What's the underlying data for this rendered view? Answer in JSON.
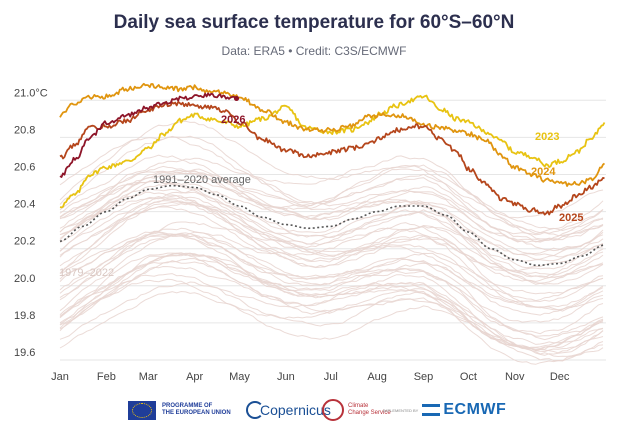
{
  "title": "Daily sea surface temperature for 60°S–60°N",
  "subtitle": "Data: ERA5 • Credit: C3S/ECMWF",
  "footer": {
    "eu_label_line1": "PROGRAMME OF",
    "eu_label_line2": "THE EUROPEAN UNION",
    "copernicus": "Copernicus",
    "c3s_line1": "Climate",
    "c3s_line2": "Change Service",
    "implemented_by": "IMPLEMENTED BY",
    "ecmwf": "ECMWF"
  },
  "colors": {
    "y2023": "#e8c312",
    "y2024": "#e0950f",
    "y2025": "#b5461c",
    "y2026": "#8e1529",
    "history": "#e8d5d0",
    "average": "#555555",
    "axis_text": "#444444"
  },
  "chart_data": {
    "type": "line",
    "title": "Daily sea surface temperature for 60°S–60°N",
    "ylim": [
      19.6,
      21.05
    ],
    "yticks": [
      19.6,
      19.8,
      20.0,
      20.2,
      20.4,
      20.6,
      20.8,
      21.0
    ],
    "ytick_labels": [
      "19.6",
      "19.8",
      "20.0",
      "20.2",
      "20.4",
      "20.6",
      "20.8",
      "21.0°C"
    ],
    "xlim": [
      0,
      365
    ],
    "months": [
      "Jan",
      "Feb",
      "Mar",
      "Apr",
      "May",
      "Jun",
      "Jul",
      "Aug",
      "Sep",
      "Oct",
      "Nov",
      "Dec"
    ],
    "month_starts": [
      0,
      31,
      59,
      90,
      120,
      151,
      181,
      212,
      243,
      273,
      304,
      334
    ],
    "annotations": {
      "average_label": "1991–2020 average",
      "history_label": "1979–2022"
    },
    "series": [
      {
        "name": "2023",
        "x": [
          0,
          10,
          20,
          31,
          45,
          59,
          70,
          80,
          90,
          100,
          110,
          120,
          135,
          151,
          165,
          181,
          195,
          205,
          215,
          225,
          235,
          243,
          255,
          265,
          273,
          285,
          295,
          304,
          315,
          325,
          334,
          345,
          355,
          364
        ],
        "y": [
          20.43,
          20.49,
          20.6,
          20.64,
          20.67,
          20.74,
          20.82,
          20.89,
          20.92,
          20.9,
          20.88,
          20.86,
          20.9,
          20.96,
          20.85,
          20.83,
          20.84,
          20.88,
          20.93,
          20.97,
          21.0,
          21.02,
          20.95,
          20.9,
          20.88,
          20.83,
          20.78,
          20.72,
          20.7,
          20.65,
          20.67,
          20.72,
          20.79,
          20.88
        ]
      },
      {
        "name": "2024",
        "x": [
          0,
          10,
          20,
          31,
          45,
          59,
          70,
          80,
          90,
          100,
          110,
          120,
          135,
          151,
          165,
          181,
          195,
          205,
          215,
          225,
          235,
          243,
          255,
          265,
          273,
          285,
          295,
          304,
          315,
          325,
          334,
          345,
          355,
          364
        ],
        "y": [
          20.92,
          20.98,
          21.02,
          21.02,
          21.06,
          21.08,
          21.07,
          21.06,
          21.07,
          21.05,
          21.04,
          21.02,
          20.95,
          20.88,
          20.84,
          20.84,
          20.86,
          20.91,
          20.92,
          20.92,
          20.9,
          20.87,
          20.85,
          20.84,
          20.82,
          20.78,
          20.7,
          20.64,
          20.6,
          20.57,
          20.55,
          20.55,
          20.57,
          20.66
        ]
      },
      {
        "name": "2025",
        "x": [
          0,
          10,
          20,
          31,
          45,
          59,
          70,
          80,
          90,
          100,
          110,
          120,
          135,
          151,
          165,
          181,
          195,
          205,
          215,
          225,
          235,
          243,
          255,
          265,
          273,
          285,
          295,
          304,
          315,
          325,
          334,
          345,
          355,
          364
        ],
        "y": [
          20.69,
          20.76,
          20.85,
          20.86,
          20.89,
          20.95,
          20.98,
          20.98,
          20.97,
          20.96,
          20.94,
          20.88,
          20.79,
          20.73,
          20.7,
          20.72,
          20.74,
          20.76,
          20.8,
          20.84,
          20.86,
          20.86,
          20.79,
          20.72,
          20.63,
          20.55,
          20.47,
          20.44,
          20.41,
          20.39,
          20.43,
          20.48,
          20.53,
          20.58
        ]
      },
      {
        "name": "2026",
        "x": [
          0,
          10,
          20,
          31,
          45,
          59,
          70,
          80,
          90,
          100,
          110,
          118
        ],
        "y": [
          20.59,
          20.68,
          20.8,
          20.88,
          20.92,
          20.96,
          20.99,
          21.01,
          21.02,
          21.03,
          21.02,
          21.01
        ]
      },
      {
        "name": "1991–2020 average",
        "x": [
          0,
          15,
          31,
          45,
          59,
          75,
          90,
          105,
          120,
          135,
          151,
          166,
          181,
          196,
          212,
          227,
          243,
          258,
          273,
          288,
          304,
          319,
          334,
          349,
          364
        ],
        "y": [
          20.24,
          20.32,
          20.4,
          20.47,
          20.52,
          20.54,
          20.53,
          20.49,
          20.43,
          20.37,
          20.33,
          20.31,
          20.32,
          20.36,
          20.4,
          20.43,
          20.43,
          20.38,
          20.29,
          20.2,
          20.14,
          20.11,
          20.12,
          20.16,
          20.22
        ]
      }
    ]
  }
}
